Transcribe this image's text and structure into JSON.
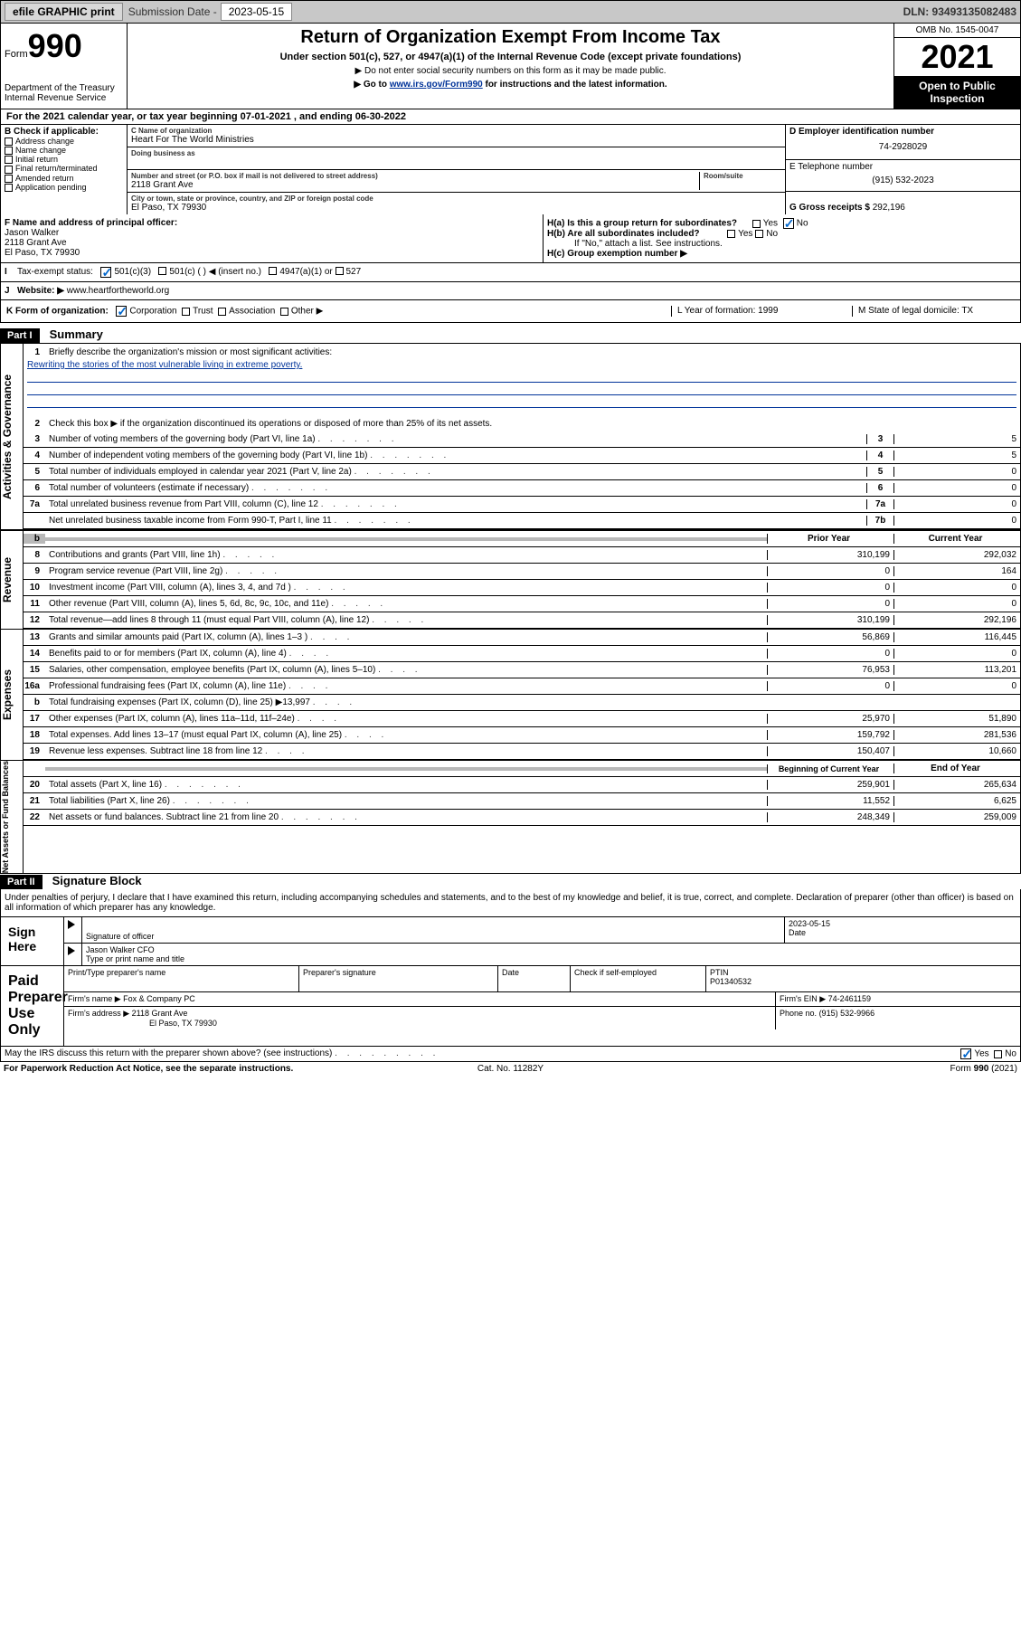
{
  "topbar": {
    "efile": "efile GRAPHIC print",
    "sub_label": "Submission Date -",
    "sub_date": "2023-05-15",
    "dln": "DLN: 93493135082483"
  },
  "header": {
    "form_lbl": "Form",
    "form_num": "990",
    "dept": "Department of the Treasury\nInternal Revenue Service",
    "title": "Return of Organization Exempt From Income Tax",
    "sub": "Under section 501(c), 527, or 4947(a)(1) of the Internal Revenue Code (except private foundations)",
    "note1": "▶ Do not enter social security numbers on this form as it may be made public.",
    "note2_a": "▶ Go to ",
    "note2_link": "www.irs.gov/Form990",
    "note2_b": " for instructions and the latest information.",
    "omb": "OMB No. 1545-0047",
    "year": "2021",
    "open": "Open to Public Inspection"
  },
  "section_a": "For the 2021 calendar year, or tax year beginning 07-01-2021   , and ending 06-30-2022",
  "col_b": {
    "hdr": "B Check if applicable:",
    "items": [
      "Address change",
      "Name change",
      "Initial return",
      "Final return/terminated",
      "Amended return",
      "Application pending"
    ]
  },
  "col_c": {
    "name_lbl": "C Name of organization",
    "name": "Heart For The World Ministries",
    "dba_lbl": "Doing business as",
    "addr_lbl": "Number and street (or P.O. box if mail is not delivered to street address)",
    "room_lbl": "Room/suite",
    "addr": "2118 Grant Ave",
    "city_lbl": "City or town, state or province, country, and ZIP or foreign postal code",
    "city": "El Paso, TX   79930"
  },
  "col_d": {
    "ein_lbl": "D Employer identification number",
    "ein": "74-2928029",
    "tel_lbl": "E Telephone number",
    "tel": "(915) 532-2023",
    "gross_lbl": "G Gross receipts $",
    "gross": "292,196"
  },
  "f": {
    "lbl": "F Name and address of principal officer:",
    "name": "Jason Walker",
    "addr1": "2118 Grant Ave",
    "addr2": "El Paso, TX   79930"
  },
  "h": {
    "ha": "H(a)  Is this a group return for subordinates?",
    "hb": "H(b)  Are all subordinates included?",
    "hb_note": "If \"No,\" attach a list. See instructions.",
    "hc": "H(c)  Group exemption number ▶",
    "yes": "Yes",
    "no": "No"
  },
  "i": {
    "lbl": "Tax-exempt status:",
    "o1": "501(c)(3)",
    "o2": "501(c) (   ) ◀ (insert no.)",
    "o3": "4947(a)(1) or",
    "o4": "527"
  },
  "j": {
    "lbl": "Website: ▶",
    "val": "www.heartfortheworld.org"
  },
  "k": {
    "lbl": "K Form of organization:",
    "o1": "Corporation",
    "o2": "Trust",
    "o3": "Association",
    "o4": "Other ▶",
    "l": "L Year of formation: 1999",
    "m": "M State of legal domicile: TX"
  },
  "part1": {
    "hdr": "Part I",
    "title": "Summary",
    "l1": "Briefly describe the organization's mission or most significant activities:",
    "l1_txt": "Rewriting the stories of the most vulnerable living in extreme poverty.",
    "l2": "Check this box ▶     if the organization discontinued its operations or disposed of more than 25% of its net assets.",
    "lines_gov": [
      {
        "n": "3",
        "t": "Number of voting members of the governing body (Part VI, line 1a)",
        "b": "3",
        "v": "5"
      },
      {
        "n": "4",
        "t": "Number of independent voting members of the governing body (Part VI, line 1b)",
        "b": "4",
        "v": "5"
      },
      {
        "n": "5",
        "t": "Total number of individuals employed in calendar year 2021 (Part V, line 2a)",
        "b": "5",
        "v": "0"
      },
      {
        "n": "6",
        "t": "Total number of volunteers (estimate if necessary)",
        "b": "6",
        "v": "0"
      },
      {
        "n": "7a",
        "t": "Total unrelated business revenue from Part VIII, column (C), line 12",
        "b": "7a",
        "v": "0"
      },
      {
        "n": "",
        "t": "Net unrelated business taxable income from Form 990-T, Part I, line 11",
        "b": "7b",
        "v": "0"
      }
    ],
    "col_prior": "Prior Year",
    "col_curr": "Current Year",
    "lines_rev": [
      {
        "n": "8",
        "t": "Contributions and grants (Part VIII, line 1h)",
        "p": "310,199",
        "c": "292,032"
      },
      {
        "n": "9",
        "t": "Program service revenue (Part VIII, line 2g)",
        "p": "0",
        "c": "164"
      },
      {
        "n": "10",
        "t": "Investment income (Part VIII, column (A), lines 3, 4, and 7d )",
        "p": "0",
        "c": "0"
      },
      {
        "n": "11",
        "t": "Other revenue (Part VIII, column (A), lines 5, 6d, 8c, 9c, 10c, and 11e)",
        "p": "0",
        "c": "0"
      },
      {
        "n": "12",
        "t": "Total revenue—add lines 8 through 11 (must equal Part VIII, column (A), line 12)",
        "p": "310,199",
        "c": "292,196"
      }
    ],
    "lines_exp": [
      {
        "n": "13",
        "t": "Grants and similar amounts paid (Part IX, column (A), lines 1–3 )",
        "p": "56,869",
        "c": "116,445"
      },
      {
        "n": "14",
        "t": "Benefits paid to or for members (Part IX, column (A), line 4)",
        "p": "0",
        "c": "0"
      },
      {
        "n": "15",
        "t": "Salaries, other compensation, employee benefits (Part IX, column (A), lines 5–10)",
        "p": "76,953",
        "c": "113,201"
      },
      {
        "n": "16a",
        "t": "Professional fundraising fees (Part IX, column (A), line 11e)",
        "p": "0",
        "c": "0"
      },
      {
        "n": "b",
        "t": "Total fundraising expenses (Part IX, column (D), line 25) ▶13,997",
        "p": "",
        "c": "",
        "shaded": true
      },
      {
        "n": "17",
        "t": "Other expenses (Part IX, column (A), lines 11a–11d, 11f–24e)",
        "p": "25,970",
        "c": "51,890"
      },
      {
        "n": "18",
        "t": "Total expenses. Add lines 13–17 (must equal Part IX, column (A), line 25)",
        "p": "159,792",
        "c": "281,536"
      },
      {
        "n": "19",
        "t": "Revenue less expenses. Subtract line 18 from line 12",
        "p": "150,407",
        "c": "10,660"
      }
    ],
    "col_beg": "Beginning of Current Year",
    "col_end": "End of Year",
    "lines_net": [
      {
        "n": "20",
        "t": "Total assets (Part X, line 16)",
        "p": "259,901",
        "c": "265,634"
      },
      {
        "n": "21",
        "t": "Total liabilities (Part X, line 26)",
        "p": "11,552",
        "c": "6,625"
      },
      {
        "n": "22",
        "t": "Net assets or fund balances. Subtract line 21 from line 20",
        "p": "248,349",
        "c": "259,009"
      }
    ],
    "side_gov": "Activities & Governance",
    "side_rev": "Revenue",
    "side_exp": "Expenses",
    "side_net": "Net Assets or Fund Balances"
  },
  "part2": {
    "hdr": "Part II",
    "title": "Signature Block",
    "note": "Under penalties of perjury, I declare that I have examined this return, including accompanying schedules and statements, and to the best of my knowledge and belief, it is true, correct, and complete. Declaration of preparer (other than officer) is based on all information of which preparer has any knowledge.",
    "sign_here": "Sign Here",
    "sig_officer": "Signature of officer",
    "sig_date_lbl": "Date",
    "sig_date": "2023-05-15",
    "officer_name": "Jason Walker CFO",
    "officer_sub": "Type or print name and title",
    "paid": "Paid Preparer Use Only",
    "prep_name_lbl": "Print/Type preparer's name",
    "prep_sig_lbl": "Preparer's signature",
    "date_lbl": "Date",
    "check_lbl": "Check     if self-employed",
    "ptin_lbl": "PTIN",
    "ptin": "P01340532",
    "firm_name_lbl": "Firm's name   ▶",
    "firm_name": "Fox & Company PC",
    "firm_ein_lbl": "Firm's EIN ▶",
    "firm_ein": "74-2461159",
    "firm_addr_lbl": "Firm's address ▶",
    "firm_addr": "2118 Grant Ave",
    "firm_city": "El Paso, TX   79930",
    "firm_tel_lbl": "Phone no.",
    "firm_tel": "(915) 532-9966",
    "discuss": "May the IRS discuss this return with the preparer shown above? (see instructions)"
  },
  "footer": {
    "l": "For Paperwork Reduction Act Notice, see the separate instructions.",
    "c": "Cat. No. 11282Y",
    "r": "Form 990 (2021)"
  }
}
